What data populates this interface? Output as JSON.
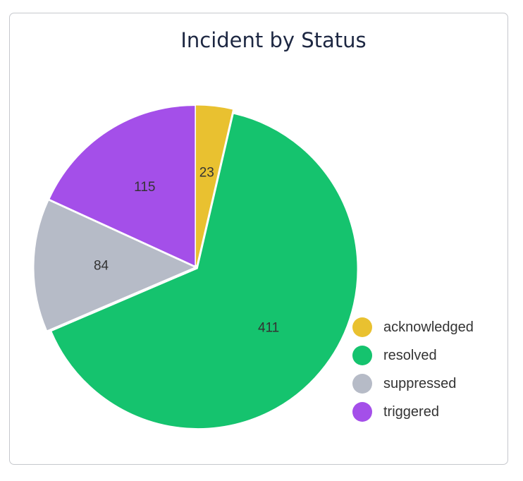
{
  "chart_data": {
    "type": "pie",
    "title": "Incident by Status",
    "categories": [
      "acknowledged",
      "resolved",
      "suppressed",
      "triggered"
    ],
    "values": [
      23,
      411,
      84,
      115
    ],
    "colors": [
      "#e9c130",
      "#15c36e",
      "#b6bbc7",
      "#a44fe9"
    ],
    "legend_position": "bottom-right",
    "data_labels": true
  }
}
